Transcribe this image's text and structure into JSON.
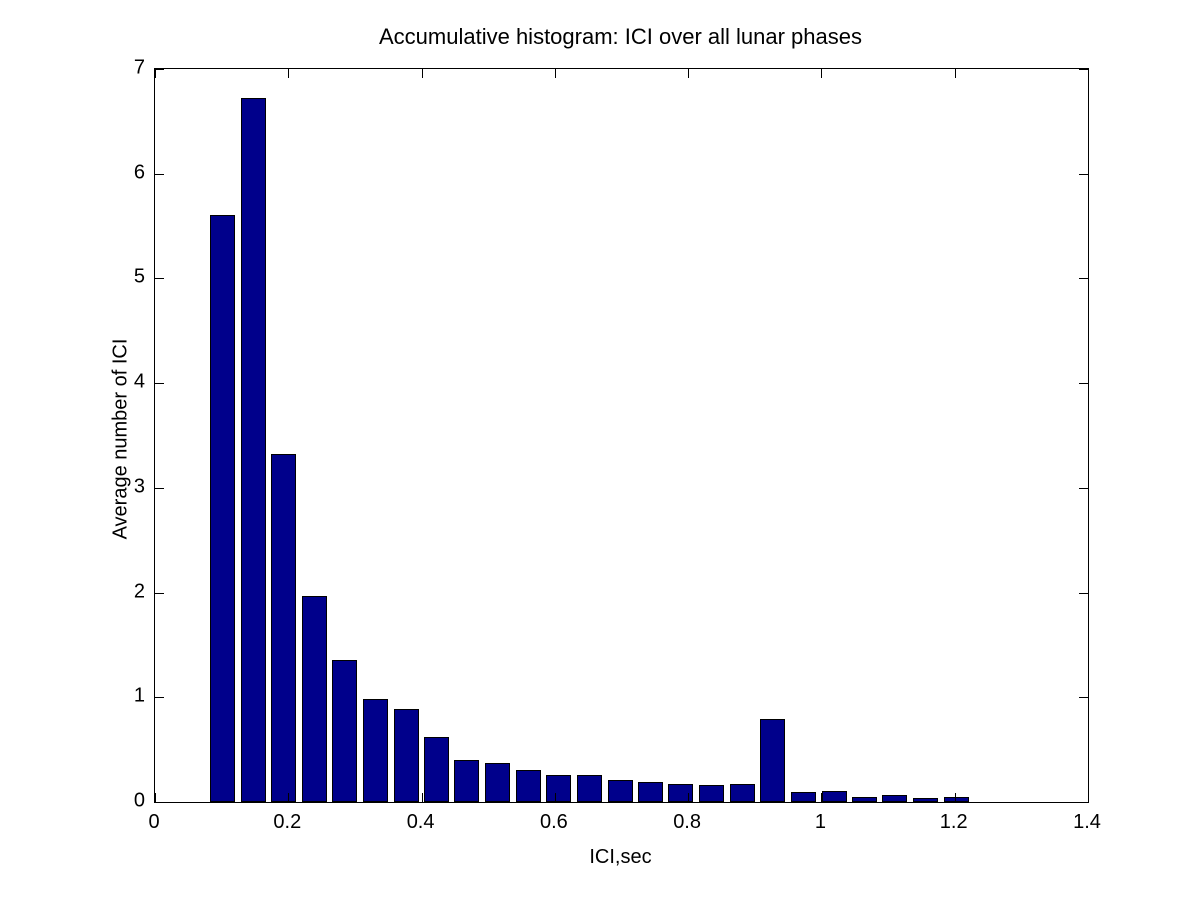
{
  "figure": {
    "background": "#ffffff"
  },
  "chart_data": {
    "type": "bar",
    "subtype": "histogram",
    "title": "Accumulative histogram: ICI over all lunar phases",
    "xlabel": "ICI,sec",
    "ylabel": "Average number of ICI",
    "xlim": [
      0,
      1.4
    ],
    "ylim": [
      0,
      7
    ],
    "grid": false,
    "legend_position": "none",
    "x_tick_values": [
      0,
      0.2,
      0.4,
      0.6,
      0.8,
      1,
      1.2,
      1.4
    ],
    "x_tick_labels": [
      "0",
      "0.2",
      "0.4",
      "0.6",
      "0.8",
      "1",
      "1.2",
      "1.4"
    ],
    "y_tick_values": [
      0,
      1,
      2,
      3,
      4,
      5,
      6,
      7
    ],
    "y_tick_labels": [
      "0",
      "1",
      "2",
      "3",
      "4",
      "5",
      "6",
      "7"
    ],
    "x": [
      0.101,
      0.147,
      0.193,
      0.239,
      0.285,
      0.331,
      0.377,
      0.422,
      0.468,
      0.514,
      0.56,
      0.606,
      0.652,
      0.698,
      0.744,
      0.789,
      0.835,
      0.881,
      0.927,
      0.973,
      1.019,
      1.064,
      1.11,
      1.156,
      1.202
    ],
    "values": [
      5.61,
      6.72,
      3.32,
      1.97,
      1.36,
      0.98,
      0.89,
      0.62,
      0.4,
      0.37,
      0.31,
      0.26,
      0.26,
      0.21,
      0.19,
      0.17,
      0.16,
      0.17,
      0.79,
      0.1,
      0.11,
      0.05,
      0.07,
      0.035,
      0.045
    ],
    "bin_spacing": 0.0459,
    "bar_width": 0.0375,
    "colors": {
      "bar_fill": "#00008B",
      "bar_edge": "#000000",
      "axis": "#000000",
      "text": "#000000",
      "background": "#ffffff"
    }
  }
}
